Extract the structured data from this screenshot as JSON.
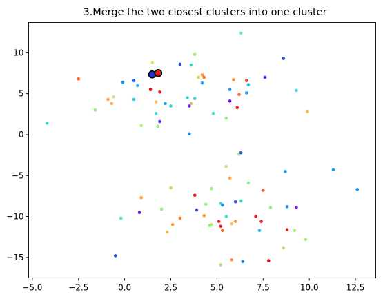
{
  "chart_data": {
    "type": "scatter",
    "title": "3.Merge the two closest clusters into one cluster",
    "xlabel": "",
    "ylabel": "",
    "xlim": [
      -5.2,
      13.6
    ],
    "ylim": [
      -17.5,
      13.7
    ],
    "xticks": [
      -5.0,
      -2.5,
      0.0,
      2.5,
      5.0,
      7.5,
      10.0,
      12.5
    ],
    "xtick_labels": [
      "−5.0",
      "−2.5",
      "0.0",
      "2.5",
      "5.0",
      "7.5",
      "10.0",
      "12.5"
    ],
    "yticks": [
      -15,
      -10,
      -5,
      0,
      5,
      10
    ],
    "ytick_labels": [
      "−15",
      "−10",
      "−5",
      "0",
      "5",
      "10"
    ],
    "grid": false,
    "legend": "none",
    "points": [
      {
        "x": -4.2,
        "y": 1.4,
        "color": "#40e0d0"
      },
      {
        "x": -2.5,
        "y": 6.8,
        "color": "#ff5a1f"
      },
      {
        "x": -1.6,
        "y": 3.0,
        "color": "#8ef07a"
      },
      {
        "x": -0.9,
        "y": 4.3,
        "color": "#f5a050"
      },
      {
        "x": -0.6,
        "y": 4.6,
        "color": "#d6e070"
      },
      {
        "x": -0.7,
        "y": 3.8,
        "color": "#f5b060"
      },
      {
        "x": -0.1,
        "y": 6.4,
        "color": "#1ea0f0"
      },
      {
        "x": 0.5,
        "y": 6.6,
        "color": "#2c5ef0"
      },
      {
        "x": 0.5,
        "y": 4.3,
        "color": "#2ed0e0"
      },
      {
        "x": 0.7,
        "y": 6.0,
        "color": "#1ec0f0"
      },
      {
        "x": 0.9,
        "y": 1.1,
        "color": "#b0f070"
      },
      {
        "x": 1.4,
        "y": 5.5,
        "color": "#ee1010"
      },
      {
        "x": 1.5,
        "y": 8.8,
        "color": "#e0e070"
      },
      {
        "x": 1.7,
        "y": 2.6,
        "color": "#40e0d0"
      },
      {
        "x": 1.7,
        "y": 4.0,
        "color": "#f0c050"
      },
      {
        "x": 1.8,
        "y": 1.0,
        "color": "#8ef07a"
      },
      {
        "x": 1.9,
        "y": 5.2,
        "color": "#ee2020"
      },
      {
        "x": 1.9,
        "y": 1.6,
        "color": "#7020f0"
      },
      {
        "x": 2.2,
        "y": 3.8,
        "color": "#1ea0f0"
      },
      {
        "x": 2.5,
        "y": 3.5,
        "color": "#2ed0d0"
      },
      {
        "x": 3.0,
        "y": 8.6,
        "color": "#3050e0"
      },
      {
        "x": 3.4,
        "y": 4.5,
        "color": "#40d0d0"
      },
      {
        "x": 3.5,
        "y": 3.5,
        "color": "#7020f0"
      },
      {
        "x": 3.6,
        "y": 3.8,
        "color": "#e0c070"
      },
      {
        "x": 3.6,
        "y": 8.5,
        "color": "#40d0d0"
      },
      {
        "x": 3.8,
        "y": 9.8,
        "color": "#a0f070"
      },
      {
        "x": 3.8,
        "y": 4.4,
        "color": "#2ed0e0"
      },
      {
        "x": 4.0,
        "y": 7.0,
        "color": "#f0c050"
      },
      {
        "x": 4.2,
        "y": 7.3,
        "color": "#ff9030"
      },
      {
        "x": 4.2,
        "y": 6.3,
        "color": "#1ea0f0"
      },
      {
        "x": 4.3,
        "y": 7.0,
        "color": "#ff7020"
      },
      {
        "x": 3.5,
        "y": 0.1,
        "color": "#1e90f0"
      },
      {
        "x": 4.8,
        "y": 2.6,
        "color": "#40e0d0"
      },
      {
        "x": 5.5,
        "y": 2.0,
        "color": "#8ef07a"
      },
      {
        "x": 5.7,
        "y": 5.5,
        "color": "#1ea0f0"
      },
      {
        "x": 5.7,
        "y": 4.1,
        "color": "#7020f0"
      },
      {
        "x": 5.9,
        "y": 6.7,
        "color": "#ff9030"
      },
      {
        "x": 6.1,
        "y": 3.3,
        "color": "#ee2020"
      },
      {
        "x": 6.2,
        "y": 4.9,
        "color": "#ff6030"
      },
      {
        "x": 6.3,
        "y": 12.4,
        "color": "#80f0a0"
      },
      {
        "x": 6.6,
        "y": 6.6,
        "color": "#ff4030"
      },
      {
        "x": 6.6,
        "y": 5.1,
        "color": "#1ea0f0"
      },
      {
        "x": 6.7,
        "y": 6.1,
        "color": "#20c0e0"
      },
      {
        "x": 7.6,
        "y": 7.0,
        "color": "#7020f0"
      },
      {
        "x": 8.6,
        "y": 9.3,
        "color": "#3050e0"
      },
      {
        "x": 9.3,
        "y": 5.4,
        "color": "#40e0d0"
      },
      {
        "x": 9.9,
        "y": 2.8,
        "color": "#f0c050"
      },
      {
        "x": 6.2,
        "y": -2.4,
        "color": "#8ef07a"
      },
      {
        "x": 6.3,
        "y": -2.2,
        "color": "#3050e0"
      },
      {
        "x": 5.5,
        "y": -3.9,
        "color": "#e0d070"
      },
      {
        "x": 8.7,
        "y": -4.5,
        "color": "#1ea0f0"
      },
      {
        "x": 11.3,
        "y": -4.3,
        "color": "#1ea0f0"
      },
      {
        "x": 12.6,
        "y": -6.7,
        "color": "#1e90f0"
      },
      {
        "x": 5.7,
        "y": -5.3,
        "color": "#ffa040"
      },
      {
        "x": 6.7,
        "y": -5.9,
        "color": "#80f0a0"
      },
      {
        "x": 7.5,
        "y": -6.8,
        "color": "#ff6030"
      },
      {
        "x": 4.7,
        "y": -6.6,
        "color": "#a0f070"
      },
      {
        "x": 2.5,
        "y": -6.5,
        "color": "#e0d070"
      },
      {
        "x": 3.8,
        "y": -7.4,
        "color": "#ee1010"
      },
      {
        "x": 0.9,
        "y": -7.7,
        "color": "#ffa040"
      },
      {
        "x": 6.0,
        "y": -8.2,
        "color": "#3050e0"
      },
      {
        "x": 6.3,
        "y": -8.1,
        "color": "#40e0d0"
      },
      {
        "x": 5.2,
        "y": -8.4,
        "color": "#40e0d0"
      },
      {
        "x": 5.3,
        "y": -8.6,
        "color": "#1e90f0"
      },
      {
        "x": 4.4,
        "y": -8.5,
        "color": "#8ef07a"
      },
      {
        "x": 3.9,
        "y": -9.2,
        "color": "#3050e0"
      },
      {
        "x": 2.0,
        "y": -9.1,
        "color": "#8ef07a"
      },
      {
        "x": 0.8,
        "y": -9.5,
        "color": "#7020f0"
      },
      {
        "x": 7.9,
        "y": -8.9,
        "color": "#a0f070"
      },
      {
        "x": 8.8,
        "y": -8.8,
        "color": "#1ea0f0"
      },
      {
        "x": 9.3,
        "y": -8.9,
        "color": "#7020f0"
      },
      {
        "x": 4.3,
        "y": -9.9,
        "color": "#ff9030"
      },
      {
        "x": 3.0,
        "y": -10.2,
        "color": "#ff7020"
      },
      {
        "x": -0.2,
        "y": -10.2,
        "color": "#40e0d0"
      },
      {
        "x": 5.5,
        "y": -10.0,
        "color": "#40e0d0"
      },
      {
        "x": 7.1,
        "y": -10.0,
        "color": "#ee2020"
      },
      {
        "x": 6.0,
        "y": -10.6,
        "color": "#ff9030"
      },
      {
        "x": 5.1,
        "y": -10.6,
        "color": "#ee2020"
      },
      {
        "x": 7.4,
        "y": -10.6,
        "color": "#ee2020"
      },
      {
        "x": 2.6,
        "y": -11.0,
        "color": "#ff9030"
      },
      {
        "x": 4.6,
        "y": -11.1,
        "color": "#8ef07a"
      },
      {
        "x": 4.7,
        "y": -11.0,
        "color": "#b0f070"
      },
      {
        "x": 5.2,
        "y": -11.2,
        "color": "#ee2020"
      },
      {
        "x": 5.8,
        "y": -10.9,
        "color": "#f0c050"
      },
      {
        "x": 5.3,
        "y": -11.7,
        "color": "#ff7020"
      },
      {
        "x": 7.3,
        "y": -11.7,
        "color": "#20c0e0"
      },
      {
        "x": 8.8,
        "y": -11.6,
        "color": "#ee2020"
      },
      {
        "x": 9.2,
        "y": -11.7,
        "color": "#b0f070"
      },
      {
        "x": 2.3,
        "y": -11.9,
        "color": "#f0c050"
      },
      {
        "x": 9.8,
        "y": -12.8,
        "color": "#a0f070"
      },
      {
        "x": 8.6,
        "y": -13.8,
        "color": "#e0d070"
      },
      {
        "x": -0.5,
        "y": -14.8,
        "color": "#3050e0"
      },
      {
        "x": 5.8,
        "y": -15.3,
        "color": "#ff9030"
      },
      {
        "x": 6.4,
        "y": -15.5,
        "color": "#1e90f0"
      },
      {
        "x": 7.8,
        "y": -15.4,
        "color": "#ee1010"
      },
      {
        "x": 5.2,
        "y": -15.9,
        "color": "#a0f070"
      }
    ],
    "highlight": [
      {
        "x": 1.49,
        "y": 7.35,
        "color": "#2233cc"
      },
      {
        "x": 1.82,
        "y": 7.52,
        "color": "#e02020"
      }
    ]
  }
}
